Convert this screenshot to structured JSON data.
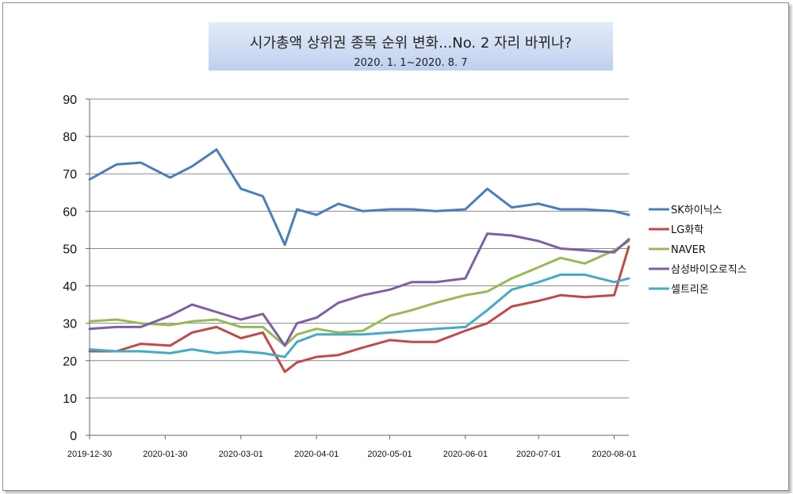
{
  "chart_data": {
    "type": "line",
    "title": "시가총액 상위권 종목 순위 변화...No. 2 자리 바뀌나?",
    "subtitle": "2020. 1. 1~2020. 8. 7",
    "ylim": [
      0,
      90
    ],
    "y_ticks": [
      "0",
      "10",
      "20",
      "30",
      "40",
      "50",
      "60",
      "70",
      "80",
      "90"
    ],
    "x_ticks": [
      "2019-12-30",
      "2020-01-30",
      "2020-03-01",
      "2020-04-01",
      "2020-05-01",
      "2020-06-01",
      "2020-07-01",
      "2020-08-01"
    ],
    "grid": "horizontal",
    "legend_position": "right",
    "x": [
      "2019-12-30",
      "2020-01-10",
      "2020-01-20",
      "2020-02-01",
      "2020-02-10",
      "2020-02-20",
      "2020-03-01",
      "2020-03-10",
      "2020-03-19",
      "2020-03-24",
      "2020-04-01",
      "2020-04-10",
      "2020-04-20",
      "2020-05-01",
      "2020-05-10",
      "2020-05-20",
      "2020-06-01",
      "2020-06-10",
      "2020-06-20",
      "2020-07-01",
      "2020-07-10",
      "2020-07-20",
      "2020-08-01",
      "2020-08-07"
    ],
    "series": [
      {
        "name": "SK하이닉스",
        "color": "#4a7ebb",
        "values": [
          68.5,
          72.5,
          73.0,
          69.0,
          72.0,
          76.5,
          66.0,
          64.0,
          51.0,
          60.5,
          59.0,
          62.0,
          60.0,
          60.5,
          60.5,
          60.0,
          60.5,
          66.0,
          61.0,
          62.0,
          60.5,
          60.5,
          60.0,
          59.0
        ]
      },
      {
        "name": "LG화학",
        "color": "#be4b48",
        "values": [
          22.5,
          22.5,
          24.5,
          24.0,
          27.5,
          29.0,
          26.0,
          27.5,
          17.0,
          19.5,
          21.0,
          21.5,
          23.5,
          25.5,
          25.0,
          25.0,
          28.0,
          30.0,
          34.5,
          36.0,
          37.5,
          37.0,
          37.5,
          50.5
        ]
      },
      {
        "name": "NAVER",
        "color": "#98b954",
        "values": [
          30.5,
          31.0,
          30.0,
          29.5,
          30.5,
          31.0,
          29.0,
          29.0,
          24.0,
          27.0,
          28.5,
          27.5,
          28.0,
          32.0,
          33.5,
          35.5,
          37.5,
          38.5,
          42.0,
          45.0,
          47.5,
          46.0,
          49.5,
          52.0
        ]
      },
      {
        "name": "삼성바이오로직스",
        "color": "#7d60a0",
        "values": [
          28.5,
          29.0,
          29.0,
          32.0,
          35.0,
          33.0,
          31.0,
          32.5,
          24.0,
          30.0,
          31.5,
          35.5,
          37.5,
          39.0,
          41.0,
          41.0,
          42.0,
          54.0,
          53.5,
          52.0,
          50.0,
          49.5,
          49.0,
          52.5
        ]
      },
      {
        "name": "셀트리온",
        "color": "#46aac5",
        "values": [
          23.0,
          22.5,
          22.5,
          22.0,
          23.0,
          22.0,
          22.5,
          22.0,
          21.0,
          25.0,
          27.0,
          27.0,
          27.0,
          27.5,
          28.0,
          28.5,
          29.0,
          33.5,
          39.0,
          41.0,
          43.0,
          43.0,
          41.0,
          42.0
        ]
      }
    ]
  }
}
